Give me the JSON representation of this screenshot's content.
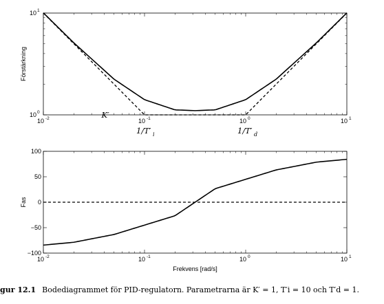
{
  "chart_data": [
    {
      "type": "line",
      "subplot": "magnitude",
      "ylabel": "Förstärkning",
      "x_scale": "log",
      "y_scale": "log",
      "xlim": [
        0.01,
        10
      ],
      "ylim": [
        1,
        10
      ],
      "x_ticks": [
        "10^-2",
        "10^-1",
        "10^0",
        "10^1"
      ],
      "y_ticks": [
        "10^0",
        "10^1"
      ],
      "series": [
        {
          "style": "solid",
          "x": [
            0.01,
            0.02,
            0.05,
            0.1,
            0.2,
            0.3162,
            0.5,
            1,
            2,
            5,
            10
          ],
          "y": [
            10.05,
            5.1,
            2.24,
            1.41,
            1.12,
            1.1,
            1.12,
            1.41,
            2.24,
            5.1,
            10.05
          ]
        },
        {
          "style": "dashed",
          "x": [
            0.01,
            0.1,
            1,
            10
          ],
          "y": [
            10,
            1,
            1,
            10
          ]
        }
      ],
      "annotations": [
        {
          "text": "K′",
          "x": 0.04,
          "y": 1.0
        },
        {
          "text": "1/T′",
          "subscript": "i",
          "x": 0.1,
          "y": 0.68
        },
        {
          "text": "1/T′",
          "subscript": "d",
          "x": 1.0,
          "y": 0.68
        }
      ]
    },
    {
      "type": "line",
      "subplot": "phase",
      "xlabel": "Frekvens [rad/s]",
      "ylabel": "Fas",
      "x_scale": "log",
      "xlim": [
        0.01,
        10
      ],
      "ylim": [
        -100,
        100
      ],
      "x_ticks": [
        "10^-2",
        "10^-1",
        "10^0",
        "10^1"
      ],
      "y_ticks": [
        -100,
        -50,
        0,
        50,
        100
      ],
      "series": [
        {
          "style": "solid",
          "x": [
            0.01,
            0.02,
            0.05,
            0.1,
            0.2,
            0.3162,
            0.5,
            1,
            2,
            5,
            10
          ],
          "y": [
            -84.3,
            -78.7,
            -63.4,
            -45,
            -26.6,
            0,
            26.6,
            45,
            63.4,
            78.7,
            84.3
          ]
        },
        {
          "style": "dashed",
          "x": [
            0.01,
            10
          ],
          "y": [
            0,
            0
          ]
        }
      ]
    }
  ],
  "caption": {
    "label": "gur 12.1",
    "text": "Bodediagrammet för PID-regulatorn. Parametrarna är K′ = 1, T′i = 10 och T′d = 1."
  }
}
